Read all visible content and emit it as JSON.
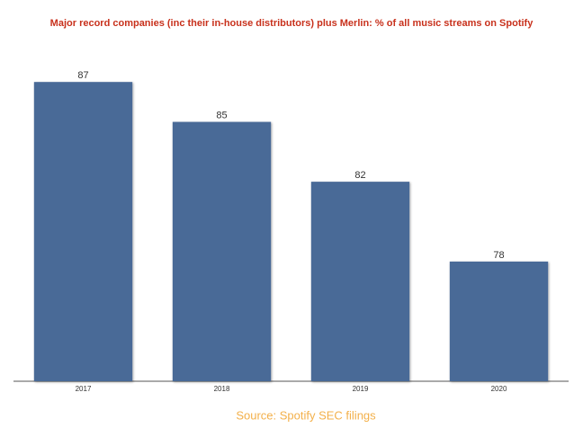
{
  "chart_data": {
    "type": "bar",
    "title": "Major record companies (inc their in-house distributors) plus Merlin: % of all music streams on Spotify",
    "categories": [
      "2017",
      "2018",
      "2019",
      "2020"
    ],
    "values": [
      87,
      85,
      82,
      78
    ],
    "color": "#4a6a97",
    "ylim": [
      72,
      88
    ],
    "source": "Source: Spotify SEC filings"
  }
}
